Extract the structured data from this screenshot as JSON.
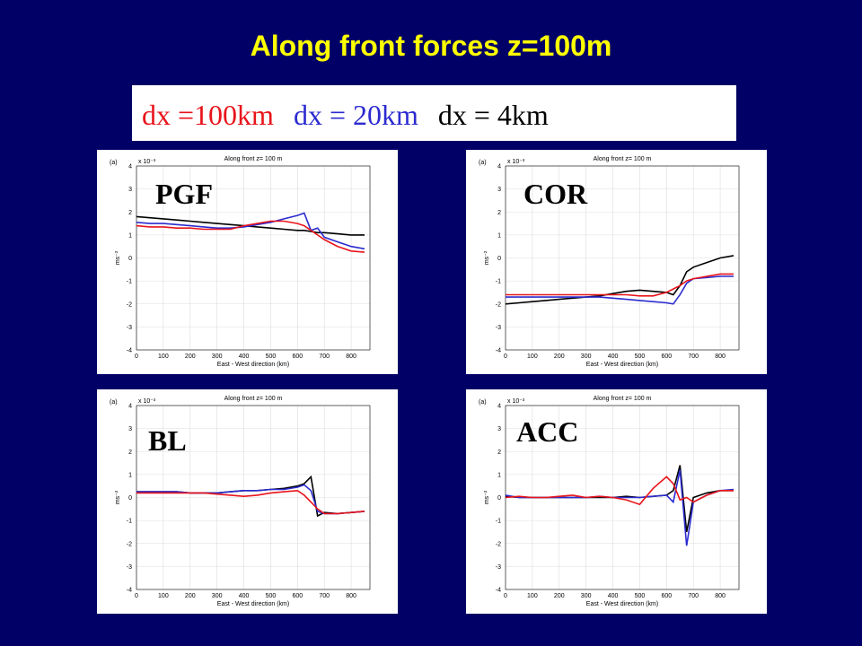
{
  "title": "Along front  forces z=100m",
  "legend": [
    {
      "name": "dx =100km",
      "color": "#e8141b"
    },
    {
      "name": "dx = 20km",
      "color": "#2b2bd0"
    },
    {
      "name": "dx = 4km",
      "color": "#000000"
    }
  ],
  "chart_data": [
    {
      "type": "line",
      "label": "PGF",
      "panel": "(a)",
      "title": "Along front z= 100 m",
      "multiplier": "x 10⁻³",
      "ylabel": "ms⁻²",
      "xlabel": "East - West direction (km)",
      "xlim": [
        0,
        870
      ],
      "ylim": [
        -4,
        4
      ],
      "xticks": [
        0,
        100,
        200,
        300,
        400,
        500,
        600,
        700,
        800
      ],
      "yticks": [
        -4,
        -3,
        -2,
        -1,
        0,
        1,
        2,
        3,
        4
      ],
      "grid": true,
      "x": [
        0,
        50,
        100,
        150,
        200,
        250,
        300,
        350,
        400,
        450,
        500,
        550,
        600,
        625,
        650,
        675,
        700,
        750,
        800,
        850
      ],
      "series": [
        {
          "color": "#000000",
          "values": [
            1.8,
            1.75,
            1.7,
            1.65,
            1.6,
            1.55,
            1.5,
            1.45,
            1.4,
            1.35,
            1.3,
            1.25,
            1.2,
            1.2,
            1.15,
            1.1,
            1.1,
            1.05,
            1.0,
            1.0
          ]
        },
        {
          "color": "#2b2bd0",
          "values": [
            1.55,
            1.5,
            1.5,
            1.45,
            1.4,
            1.35,
            1.3,
            1.3,
            1.35,
            1.45,
            1.55,
            1.7,
            1.85,
            1.95,
            1.2,
            1.3,
            0.9,
            0.7,
            0.5,
            0.4
          ]
        },
        {
          "color": "#e8141b",
          "values": [
            1.4,
            1.35,
            1.35,
            1.3,
            1.3,
            1.25,
            1.25,
            1.25,
            1.4,
            1.5,
            1.6,
            1.6,
            1.5,
            1.4,
            1.2,
            1.0,
            0.8,
            0.5,
            0.3,
            0.25
          ]
        }
      ]
    },
    {
      "type": "line",
      "label": "COR",
      "panel": "(a)",
      "title": "Along front z= 100 m",
      "multiplier": "x 10⁻³",
      "ylabel": "ms⁻²",
      "xlabel": "East - West direction (km)",
      "xlim": [
        0,
        870
      ],
      "ylim": [
        -4,
        4
      ],
      "xticks": [
        0,
        100,
        200,
        300,
        400,
        500,
        600,
        700,
        800
      ],
      "yticks": [
        -4,
        -3,
        -2,
        -1,
        0,
        1,
        2,
        3,
        4
      ],
      "grid": true,
      "x": [
        0,
        50,
        100,
        150,
        200,
        250,
        300,
        350,
        400,
        450,
        500,
        550,
        600,
        625,
        650,
        675,
        700,
        750,
        800,
        850
      ],
      "series": [
        {
          "color": "#000000",
          "values": [
            -2.0,
            -1.95,
            -1.9,
            -1.85,
            -1.8,
            -1.75,
            -1.7,
            -1.65,
            -1.55,
            -1.45,
            -1.4,
            -1.45,
            -1.5,
            -1.6,
            -1.2,
            -0.6,
            -0.4,
            -0.2,
            0.0,
            0.1
          ]
        },
        {
          "color": "#2b2bd0",
          "values": [
            -1.7,
            -1.7,
            -1.7,
            -1.7,
            -1.7,
            -1.7,
            -1.7,
            -1.7,
            -1.75,
            -1.8,
            -1.85,
            -1.9,
            -1.95,
            -2.0,
            -1.6,
            -1.1,
            -0.9,
            -0.85,
            -0.8,
            -0.8
          ]
        },
        {
          "color": "#e8141b",
          "values": [
            -1.6,
            -1.6,
            -1.6,
            -1.6,
            -1.6,
            -1.6,
            -1.6,
            -1.6,
            -1.6,
            -1.6,
            -1.65,
            -1.65,
            -1.5,
            -1.35,
            -1.2,
            -1.0,
            -0.9,
            -0.8,
            -0.7,
            -0.7
          ]
        }
      ]
    },
    {
      "type": "line",
      "label": "BL",
      "panel": "(a)",
      "title": "Along front z= 100 m",
      "multiplier": "x 10⁻³",
      "ylabel": "ms⁻²",
      "xlabel": "East - West direction (km)",
      "xlim": [
        0,
        870
      ],
      "ylim": [
        -4,
        4
      ],
      "xticks": [
        0,
        100,
        200,
        300,
        400,
        500,
        600,
        700,
        800
      ],
      "yticks": [
        -4,
        -3,
        -2,
        -1,
        0,
        1,
        2,
        3,
        4
      ],
      "grid": true,
      "x": [
        0,
        50,
        100,
        150,
        200,
        250,
        300,
        350,
        400,
        450,
        500,
        550,
        600,
        625,
        650,
        675,
        700,
        750,
        800,
        850
      ],
      "series": [
        {
          "color": "#000000",
          "values": [
            0.25,
            0.25,
            0.25,
            0.25,
            0.2,
            0.2,
            0.2,
            0.25,
            0.3,
            0.3,
            0.35,
            0.4,
            0.5,
            0.6,
            0.9,
            -0.8,
            -0.65,
            -0.7,
            -0.65,
            -0.6
          ]
        },
        {
          "color": "#2b2bd0",
          "values": [
            0.25,
            0.25,
            0.25,
            0.25,
            0.2,
            0.2,
            0.2,
            0.25,
            0.3,
            0.3,
            0.35,
            0.35,
            0.45,
            0.55,
            0.3,
            -0.6,
            -0.7,
            -0.7,
            -0.65,
            -0.6
          ]
        },
        {
          "color": "#e8141b",
          "values": [
            0.2,
            0.2,
            0.2,
            0.2,
            0.2,
            0.2,
            0.15,
            0.1,
            0.05,
            0.1,
            0.2,
            0.25,
            0.3,
            0.1,
            -0.2,
            -0.5,
            -0.7,
            -0.7,
            -0.65,
            -0.6
          ]
        }
      ]
    },
    {
      "type": "line",
      "label": "ACC",
      "panel": "(a)",
      "title": "Along front z= 100 m",
      "multiplier": "x 10⁻³",
      "ylabel": "ms⁻²",
      "xlabel": "East - West direction (km)",
      "xlim": [
        0,
        870
      ],
      "ylim": [
        -4,
        4
      ],
      "xticks": [
        0,
        100,
        200,
        300,
        400,
        500,
        600,
        700,
        800
      ],
      "yticks": [
        -4,
        -3,
        -2,
        -1,
        0,
        1,
        2,
        3,
        4
      ],
      "grid": true,
      "x": [
        0,
        50,
        100,
        150,
        200,
        250,
        300,
        350,
        400,
        450,
        500,
        550,
        600,
        625,
        650,
        675,
        700,
        750,
        800,
        850
      ],
      "series": [
        {
          "color": "#000000",
          "values": [
            0.05,
            0.0,
            0.0,
            0.0,
            0.0,
            0.0,
            0.0,
            0.0,
            0.0,
            0.05,
            0.0,
            0.05,
            0.1,
            0.3,
            1.4,
            -1.5,
            0.0,
            0.2,
            0.3,
            0.3
          ]
        },
        {
          "color": "#2b2bd0",
          "values": [
            0.1,
            0.0,
            0.0,
            0.0,
            0.0,
            0.0,
            0.0,
            0.05,
            0.0,
            0.0,
            0.0,
            0.05,
            0.1,
            -0.2,
            1.2,
            -2.1,
            -0.2,
            0.1,
            0.3,
            0.35
          ]
        },
        {
          "color": "#e8141b",
          "values": [
            0.0,
            0.05,
            0.0,
            0.0,
            0.05,
            0.1,
            0.0,
            0.05,
            0.0,
            -0.1,
            -0.3,
            0.4,
            0.9,
            0.6,
            -0.1,
            0.0,
            -0.2,
            0.1,
            0.3,
            0.3
          ]
        }
      ]
    }
  ]
}
